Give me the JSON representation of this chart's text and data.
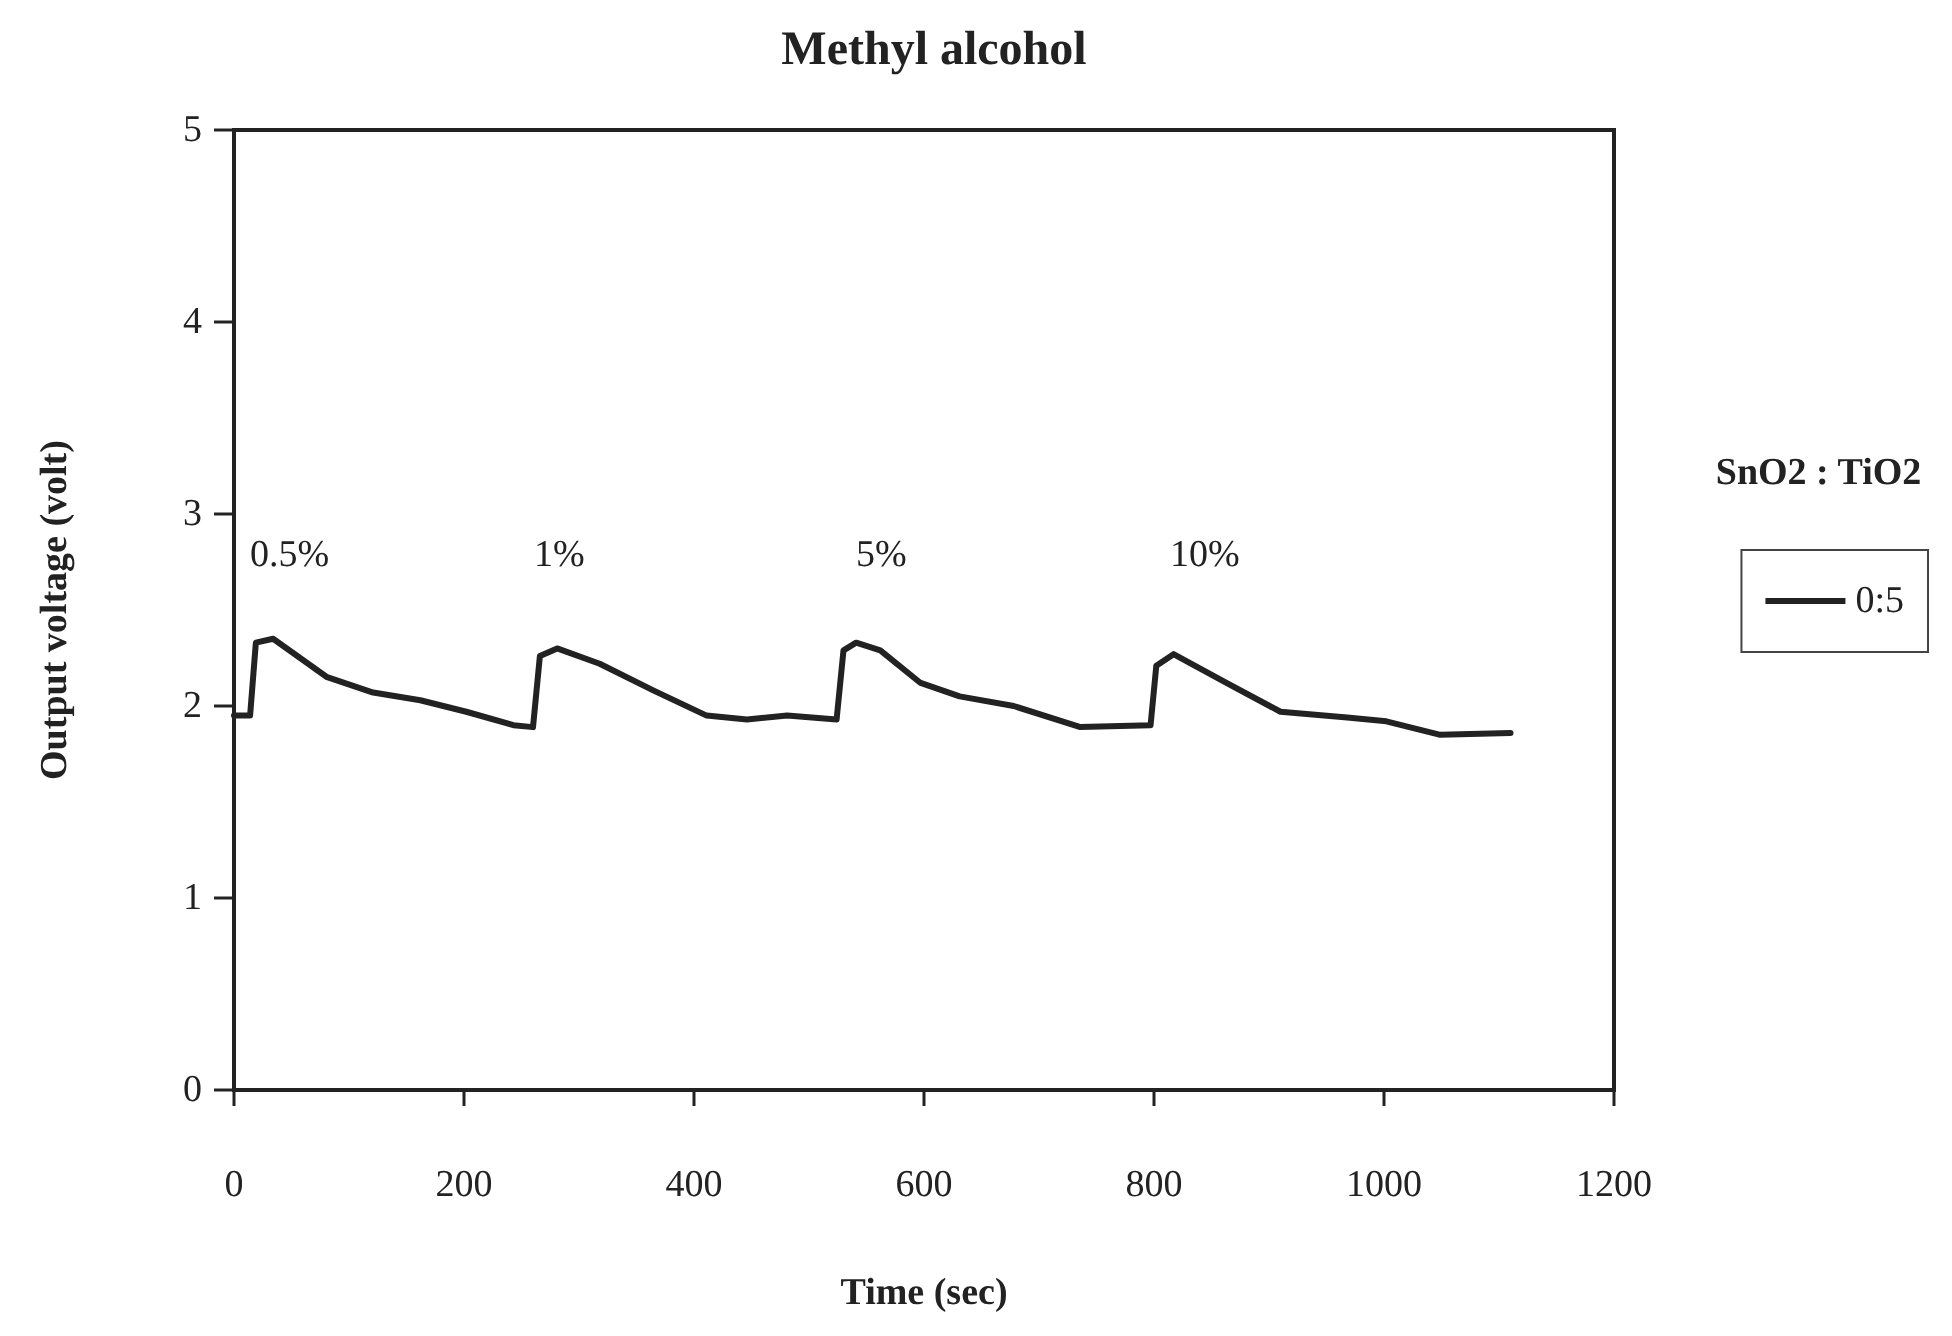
{
  "chart_data": {
    "type": "line",
    "title": "Methyl alcohol",
    "xlabel": "Time (sec)",
    "ylabel": "Output voltage (volt)",
    "legend_title": "SnO2 : TiO2",
    "legend": "right",
    "grid": false,
    "marker": "none",
    "line_style": "solid",
    "xlim": [
      0,
      1200
    ],
    "xticks": [
      0,
      200,
      400,
      600,
      800,
      1000,
      1200
    ],
    "ylim": [
      0,
      5
    ],
    "yticks": [
      0,
      1,
      2,
      3,
      4,
      5
    ],
    "series": [
      {
        "name": "0:5",
        "color": "#222222",
        "x": [
          0,
          14,
          19,
          34,
          81,
          121,
          162,
          202,
          243,
          260,
          266,
          281,
          318,
          365,
          411,
          446,
          481,
          524,
          530,
          541,
          562,
          597,
          631,
          678,
          736,
          797,
          802,
          817,
          863,
          910,
          968,
          1002,
          1049,
          1110
        ],
        "values": [
          1.95,
          1.95,
          2.33,
          2.35,
          2.15,
          2.07,
          2.03,
          1.97,
          1.9,
          1.89,
          2.26,
          2.3,
          2.22,
          2.08,
          1.95,
          1.93,
          1.95,
          1.93,
          2.29,
          2.33,
          2.29,
          2.12,
          2.05,
          2.0,
          1.89,
          1.9,
          2.21,
          2.27,
          2.12,
          1.97,
          1.94,
          1.92,
          1.85,
          1.86
        ]
      }
    ],
    "annotations": [
      "0.5%",
      "1%",
      "5%",
      "10%"
    ]
  }
}
